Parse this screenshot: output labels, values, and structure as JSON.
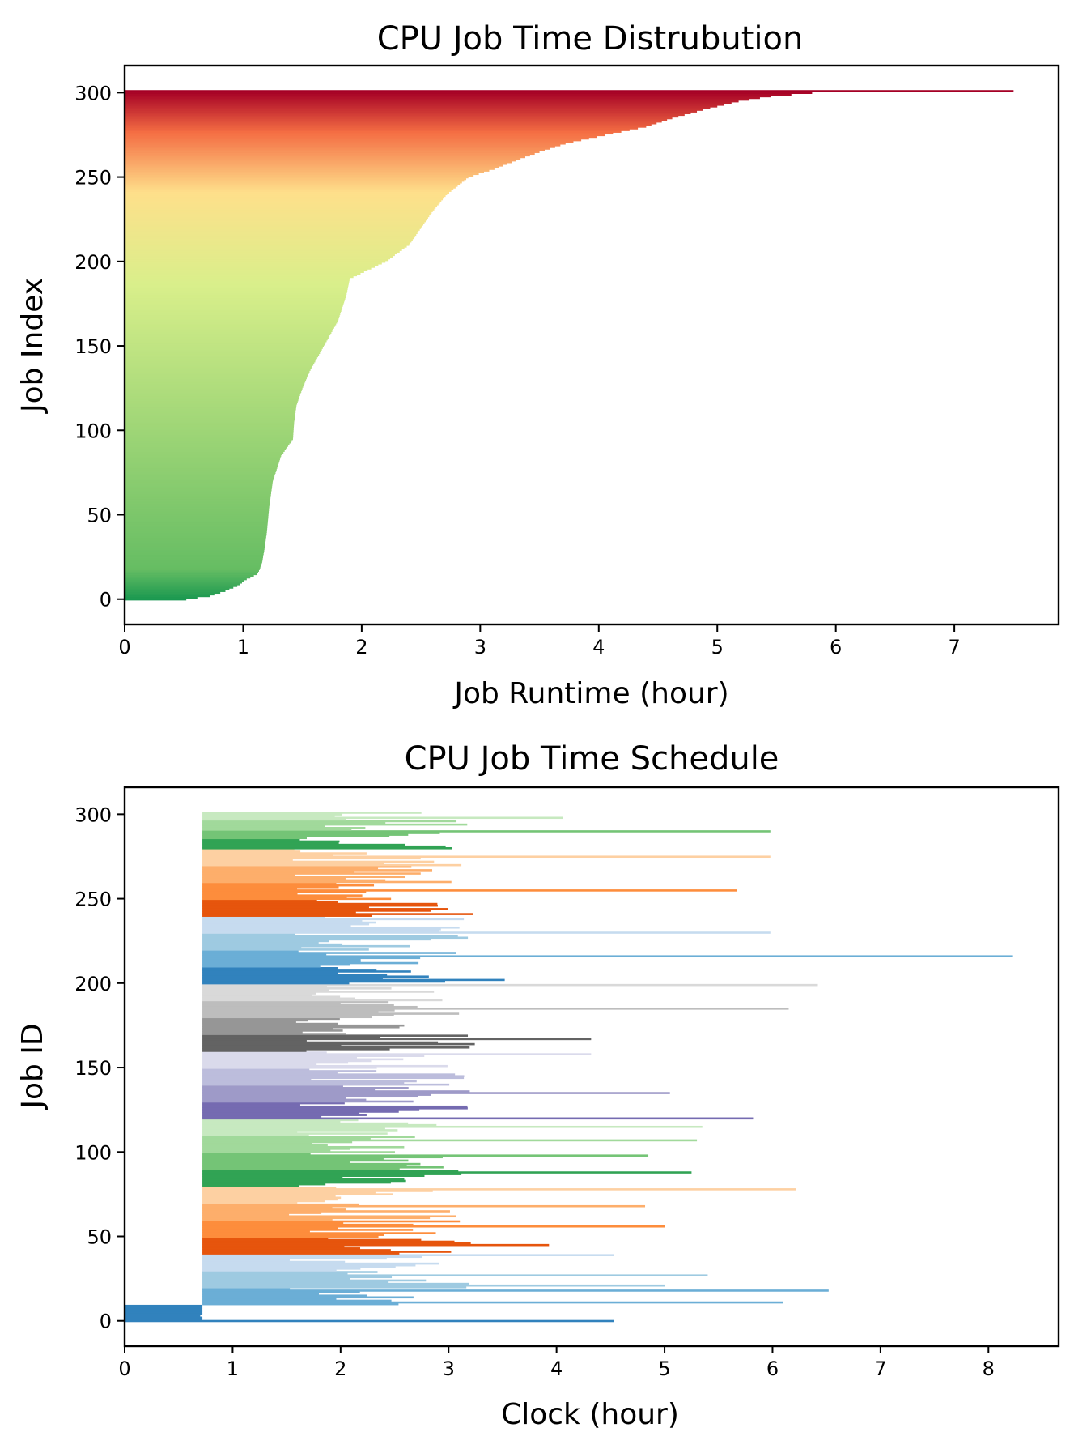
{
  "chart_data": [
    {
      "id": "distribution",
      "type": "bar",
      "orientation": "horizontal",
      "title": "CPU Job Time Distrubution",
      "xlabel": "Job Runtime (hour)",
      "ylabel": "Job Index",
      "xlim": [
        0,
        7.88
      ],
      "ylim": [
        -15,
        316
      ],
      "xticks": [
        "0",
        "1",
        "2",
        "3",
        "4",
        "5",
        "6",
        "7"
      ],
      "yticks": [
        "0",
        "50",
        "100",
        "150",
        "200",
        "250",
        "300"
      ],
      "grid": false,
      "legend": "none",
      "colormap": "RdYlGn_r",
      "colors": {
        "low": "#1a9850",
        "mid_low": "#66bd63",
        "mid": "#d9ef8b",
        "mid_high": "#fee08b",
        "high": "#f46d43",
        "top": "#a50026"
      },
      "job_index_range": [
        0,
        301
      ],
      "sorted_runtime_curve": {
        "index": [
          0,
          2,
          5,
          8,
          12,
          15,
          18,
          22,
          30,
          40,
          55,
          70,
          85,
          95,
          105,
          115,
          125,
          135,
          150,
          165,
          180,
          190,
          195,
          200,
          205,
          210,
          220,
          230,
          240,
          250,
          255,
          260,
          265,
          270,
          275,
          280,
          285,
          290,
          295,
          298,
          300,
          301
        ],
        "runtime": [
          0.52,
          0.72,
          0.85,
          0.95,
          1.03,
          1.12,
          1.14,
          1.16,
          1.18,
          1.2,
          1.22,
          1.25,
          1.32,
          1.42,
          1.43,
          1.45,
          1.5,
          1.56,
          1.68,
          1.8,
          1.87,
          1.9,
          2.05,
          2.2,
          2.3,
          2.4,
          2.5,
          2.6,
          2.72,
          2.9,
          3.12,
          3.3,
          3.5,
          3.72,
          4.05,
          4.4,
          4.62,
          4.88,
          5.18,
          5.45,
          5.8,
          7.5
        ]
      }
    },
    {
      "id": "schedule",
      "type": "bar",
      "orientation": "horizontal",
      "title": "CPU Job Time Schedule",
      "xlabel": "Clock (hour)",
      "ylabel": "Job ID",
      "xlim": [
        0,
        8.65
      ],
      "ylim": [
        -15,
        316
      ],
      "xticks": [
        "0",
        "1",
        "2",
        "3",
        "4",
        "5",
        "6",
        "7",
        "8"
      ],
      "yticks": [
        "0",
        "50",
        "100",
        "150",
        "200",
        "250",
        "300"
      ],
      "grid": false,
      "legend": "none",
      "palette": {
        "blues": [
          "#3182bd",
          "#6baed6",
          "#9ecae1",
          "#c6dbef"
        ],
        "oranges": [
          "#e6550d",
          "#fd8d3c",
          "#fdae6b",
          "#fdd0a2"
        ],
        "greens": [
          "#31a354",
          "#74c476",
          "#a1d99b",
          "#c7e9c0"
        ],
        "purples": [
          "#756bb1",
          "#9e9ac8",
          "#bcbddc",
          "#dadaeb"
        ],
        "greys": [
          "#636363",
          "#969696",
          "#bdbdbd",
          "#d9d9d9"
        ]
      },
      "color_groups": [
        {
          "ids": [
            0,
            39
          ],
          "family": "blues"
        },
        {
          "ids": [
            40,
            79
          ],
          "family": "oranges"
        },
        {
          "ids": [
            80,
            119
          ],
          "family": "greens"
        },
        {
          "ids": [
            120,
            159
          ],
          "family": "purples"
        },
        {
          "ids": [
            160,
            199
          ],
          "family": "greys"
        },
        {
          "ids": [
            200,
            239
          ],
          "family": "blues"
        },
        {
          "ids": [
            240,
            279
          ],
          "family": "oranges"
        },
        {
          "ids": [
            280,
            301
          ],
          "family": "greens"
        }
      ],
      "first_batch": {
        "ids": [
          0,
          9
        ],
        "start": 0.0,
        "end": [
          0.72,
          0.72,
          0.72,
          0.7,
          0.72,
          0.72,
          0.72,
          0.72,
          0.72,
          0.72
        ]
      },
      "batch_start": 0.72,
      "notable_runs": [
        {
          "id": 0,
          "start": 0.0,
          "end": 4.53
        },
        {
          "id": 11,
          "start": 0.72,
          "end": 6.1
        },
        {
          "id": 18,
          "start": 0.72,
          "end": 6.52
        },
        {
          "id": 21,
          "start": 0.72,
          "end": 5.0
        },
        {
          "id": 27,
          "start": 0.72,
          "end": 5.4
        },
        {
          "id": 39,
          "start": 0.72,
          "end": 4.53
        },
        {
          "id": 45,
          "start": 0.72,
          "end": 3.93
        },
        {
          "id": 56,
          "start": 0.72,
          "end": 5.0
        },
        {
          "id": 68,
          "start": 0.72,
          "end": 4.82
        },
        {
          "id": 78,
          "start": 0.72,
          "end": 6.22
        },
        {
          "id": 88,
          "start": 0.72,
          "end": 5.25
        },
        {
          "id": 98,
          "start": 0.72,
          "end": 4.85
        },
        {
          "id": 107,
          "start": 0.72,
          "end": 5.3
        },
        {
          "id": 115,
          "start": 0.72,
          "end": 5.35
        },
        {
          "id": 120,
          "start": 0.72,
          "end": 5.82
        },
        {
          "id": 135,
          "start": 0.72,
          "end": 5.05
        },
        {
          "id": 158,
          "start": 0.72,
          "end": 4.32
        },
        {
          "id": 167,
          "start": 0.72,
          "end": 4.32
        },
        {
          "id": 185,
          "start": 0.72,
          "end": 6.15
        },
        {
          "id": 199,
          "start": 0.72,
          "end": 6.42
        },
        {
          "id": 202,
          "start": 0.72,
          "end": 3.52
        },
        {
          "id": 216,
          "start": 0.72,
          "end": 8.22
        },
        {
          "id": 230,
          "start": 0.72,
          "end": 5.98
        },
        {
          "id": 255,
          "start": 0.72,
          "end": 5.67
        },
        {
          "id": 275,
          "start": 0.72,
          "end": 5.98
        },
        {
          "id": 290,
          "start": 0.72,
          "end": 5.98
        },
        {
          "id": 298,
          "start": 0.72,
          "end": 4.06
        }
      ]
    }
  ]
}
